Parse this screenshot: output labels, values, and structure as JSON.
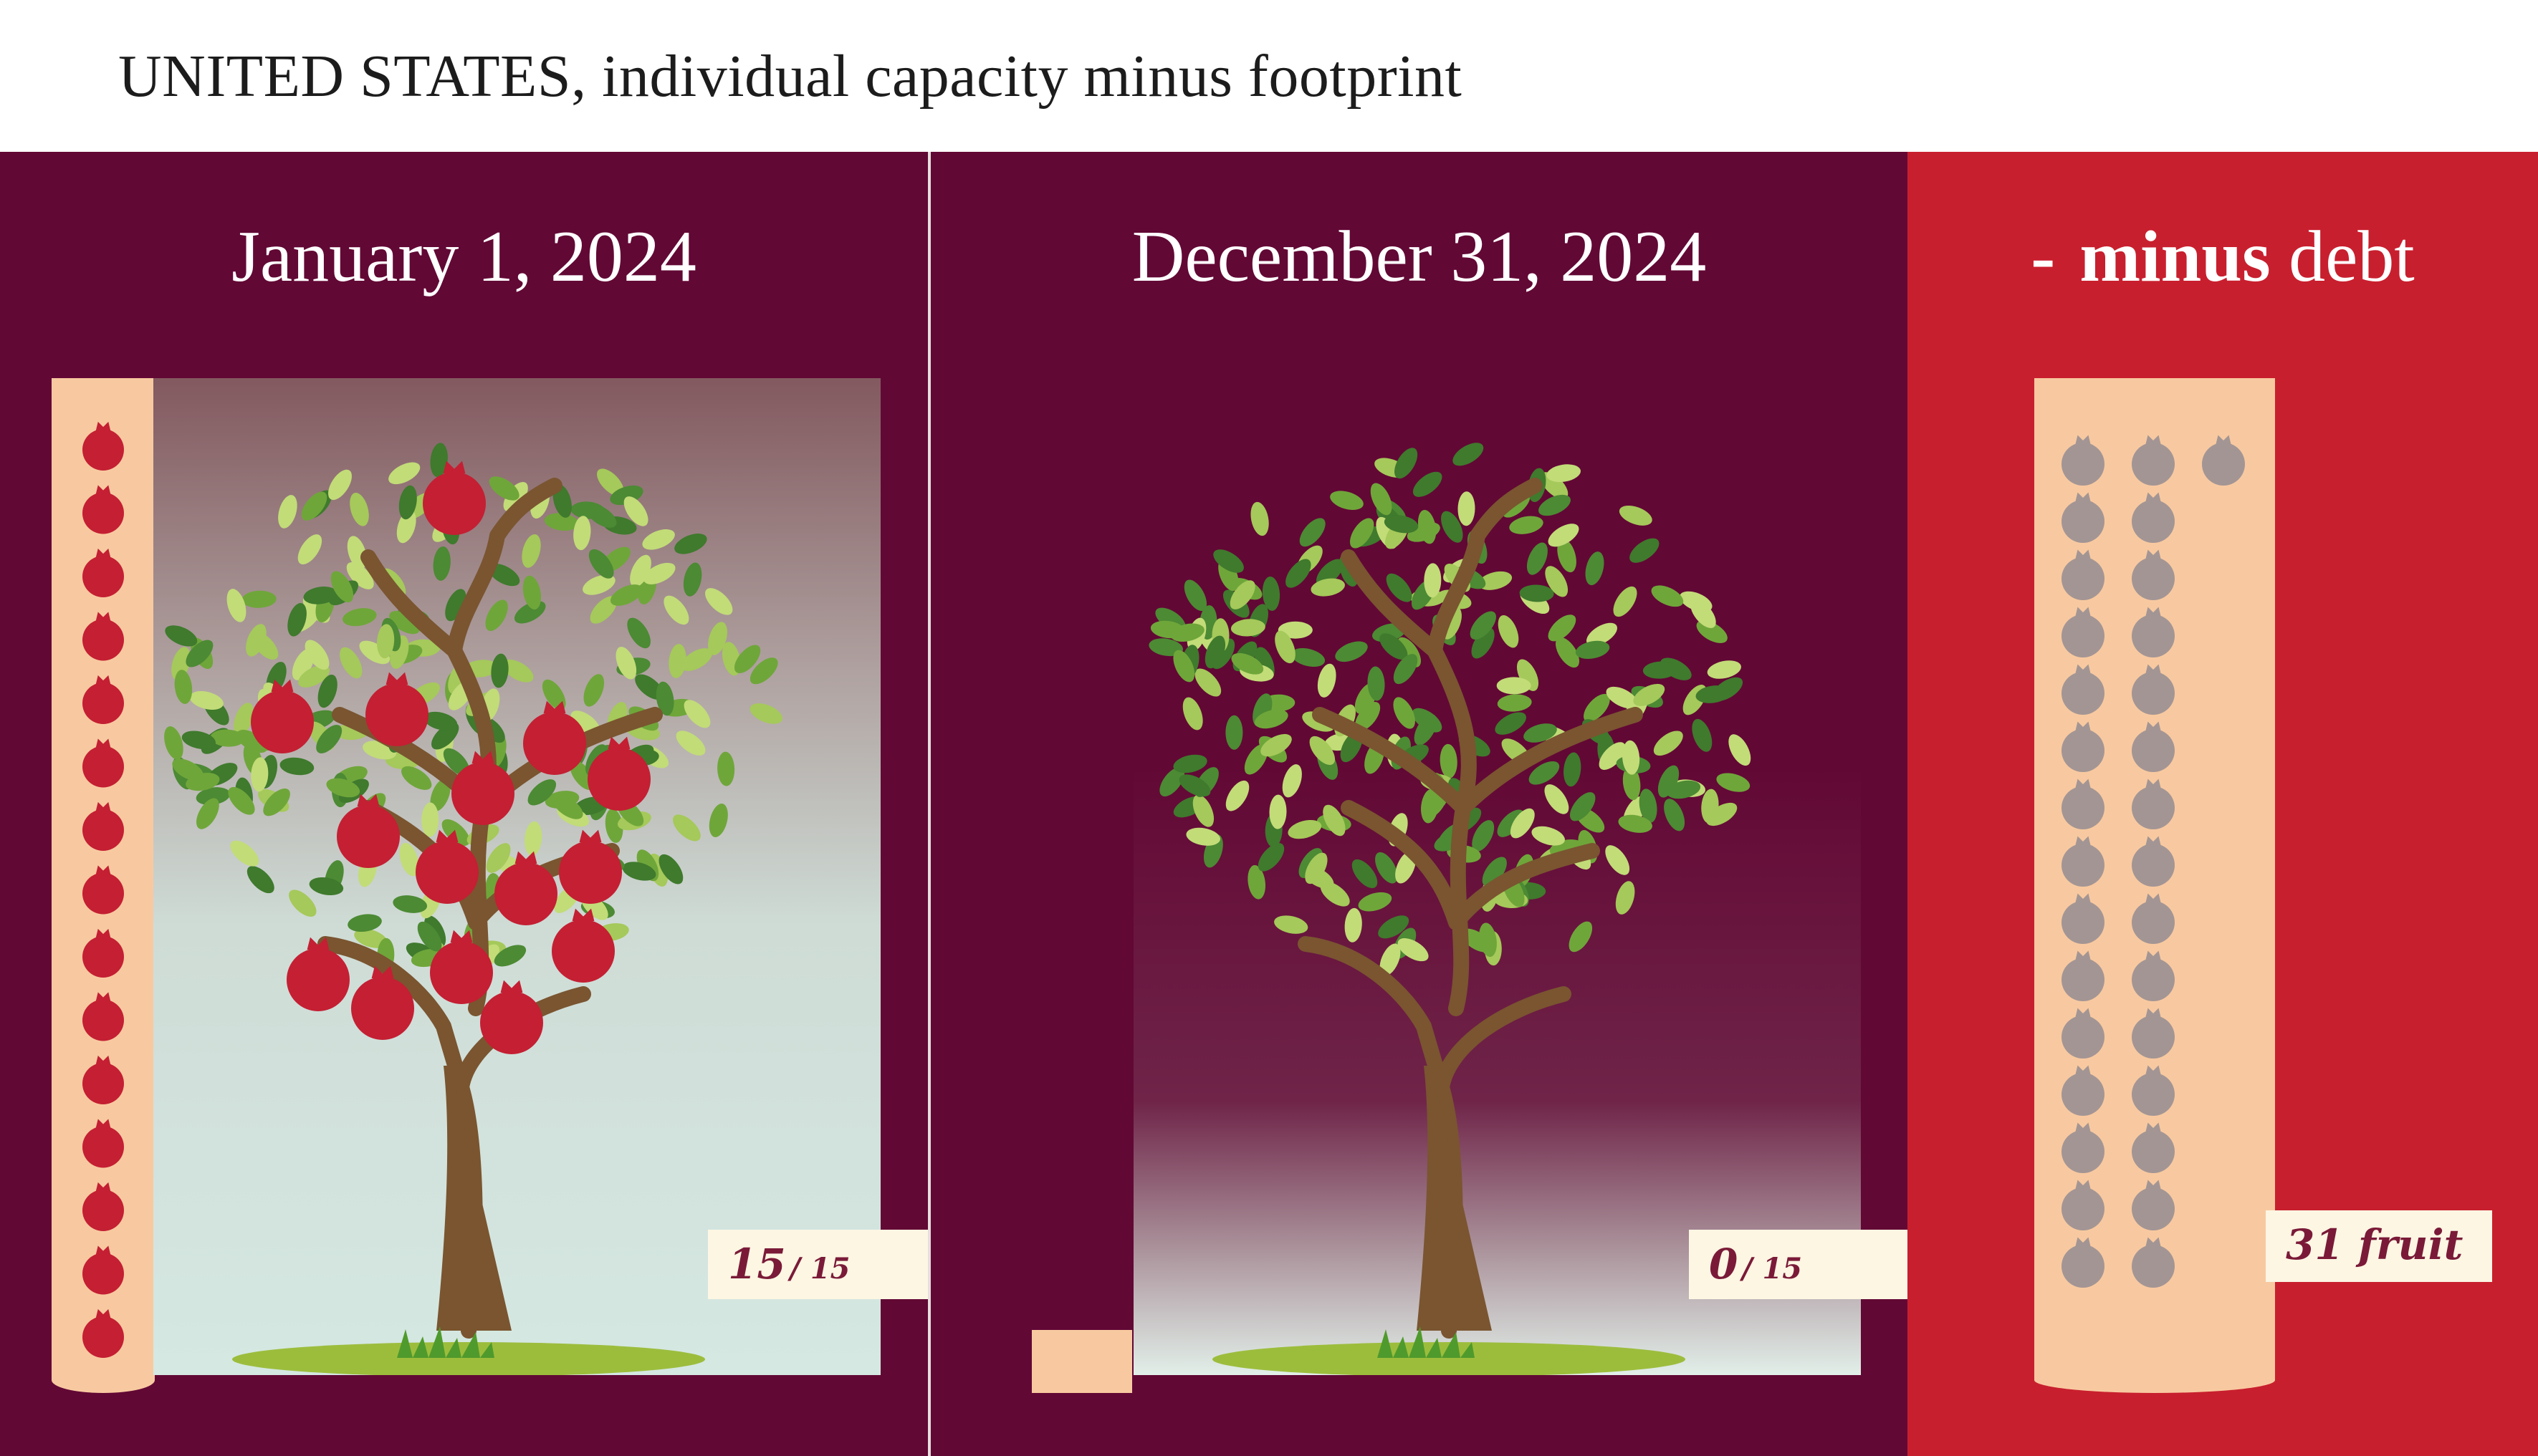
{
  "header": {
    "title": "UNITED STATES, individual capacity minus footprint"
  },
  "columns": [
    {
      "title": "January 1, 2024",
      "fruit_remaining": 15,
      "capacity": 15,
      "count_value": "15",
      "count_denominator": "/ 15"
    },
    {
      "title": "December 31, 2024",
      "fruit_remaining": 0,
      "capacity": 15,
      "count_value": "0",
      "count_denominator": "/ 15"
    },
    {
      "title_prefix": "-",
      "title_bold": "minus",
      "title_rest": "debt",
      "debt_count": 31,
      "count_label": "31 fruit"
    }
  ],
  "colors": {
    "maroon": "#620835",
    "crimson": "#c81f2e",
    "peach": "#f8c9a0",
    "fruit_red": "#c41f33",
    "debt_fruit_gray": "#a39594",
    "label_box": "#fcf6e3",
    "label_text": "#7a1a38"
  },
  "icons": {
    "fruit": "pomegranate-icon",
    "tree_full": "pomegranate-tree",
    "tree_bare": "leafy-tree"
  }
}
